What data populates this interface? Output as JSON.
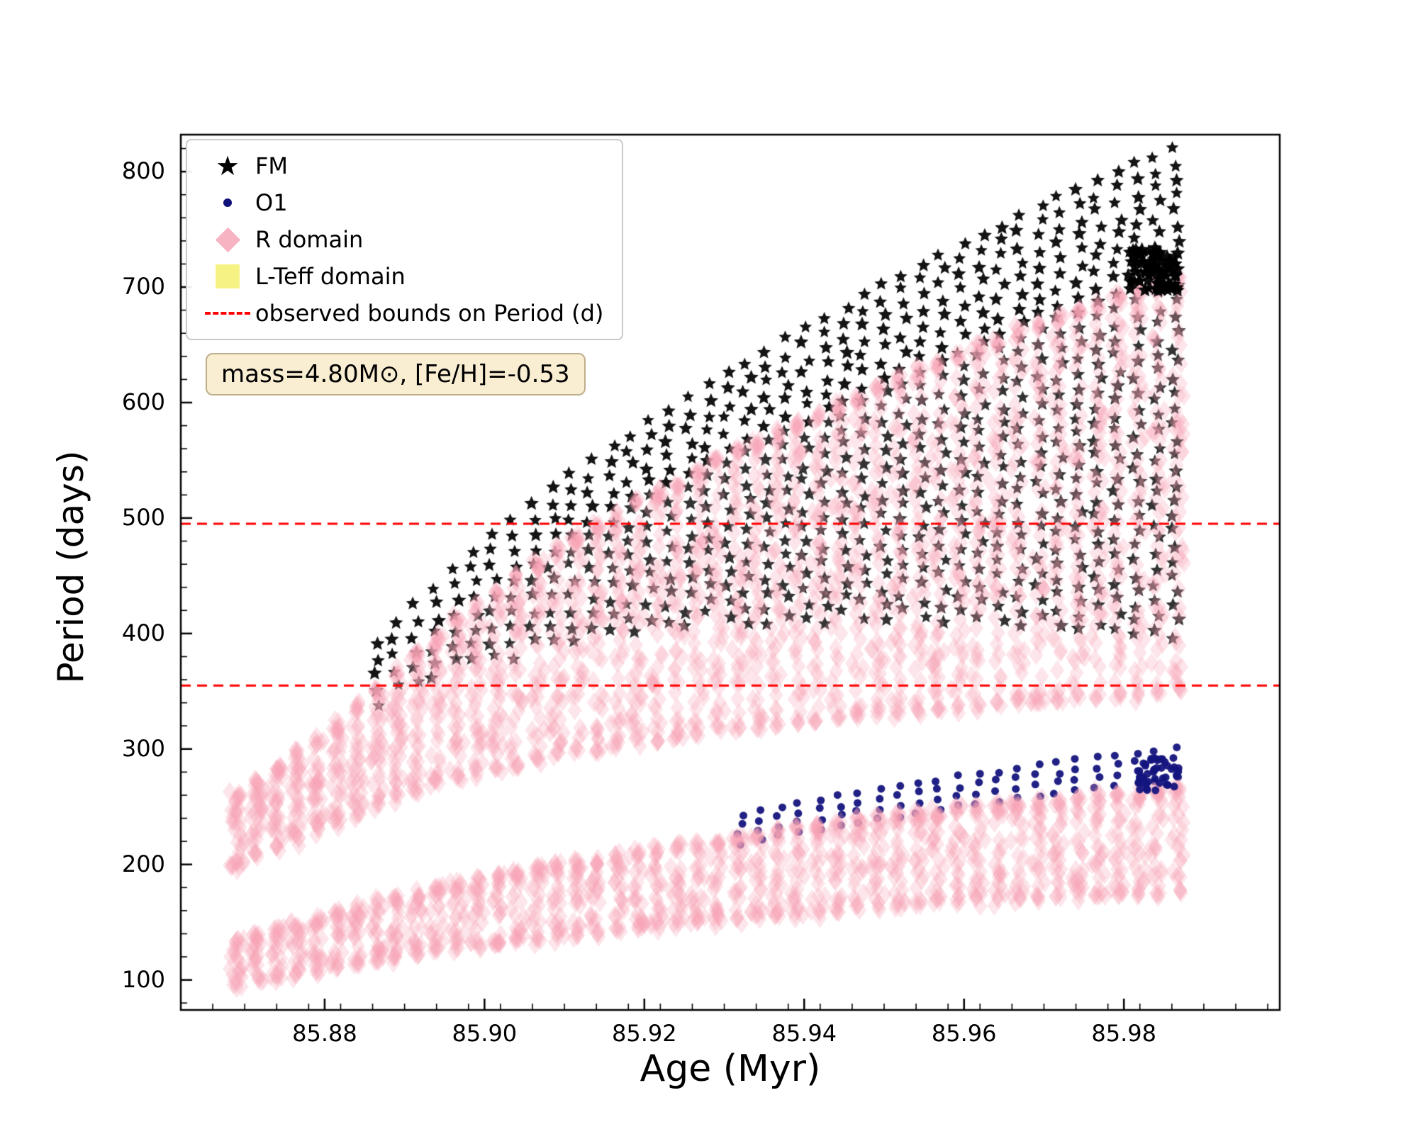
{
  "legend": {
    "position": "upper left",
    "items": [
      {
        "label": "FM",
        "marker": "star",
        "color": "#000000"
      },
      {
        "label": "O1",
        "marker": "dot",
        "color": "#10107a"
      },
      {
        "label": "R domain",
        "marker": "diamond",
        "color": "#f7b3c2"
      },
      {
        "label": "L-Teff domain",
        "marker": "square",
        "color": "#f5f16e"
      },
      {
        "label": "observed bounds on Period (d)",
        "marker": "dashed-line",
        "color": "#ff0000"
      }
    ]
  },
  "annotation": {
    "text": "mass=4.80M⊙, [Fe/H]=-0.53",
    "background": "#f9edd2",
    "border_color": "#bfae8c"
  },
  "chart_data": {
    "type": "scatter",
    "title": "",
    "xlabel": "Age (Myr)",
    "ylabel": "Period (days)",
    "xlim": [
      85.862,
      85.9995
    ],
    "ylim": [
      74,
      832
    ],
    "xticks": [
      85.88,
      85.9,
      85.92,
      85.94,
      85.96,
      85.98
    ],
    "yticks": [
      100,
      200,
      300,
      400,
      500,
      600,
      700,
      800
    ],
    "x_minor_step": 0.004,
    "y_minor_step": 20,
    "grid": false,
    "legend_position": "upper left",
    "hlines": {
      "label": "observed bounds on Period (d)",
      "values": [
        495,
        355
      ],
      "color": "#ff0000",
      "style": "dashed"
    },
    "series": [
      {
        "name": "FM",
        "marker": "star",
        "color": "#000000",
        "alpha_top": 0.92,
        "alpha_buried": 0.8,
        "age_start": 85.8865,
        "age_end": 85.9865,
        "columns": 42,
        "spacing_days": 13.2,
        "above_envelope_min": 35,
        "above_envelope_extra": 75,
        "below_envelope_min": 20,
        "below_envelope_extra": 300,
        "period_range": [
          345,
          818
        ],
        "clump": {
          "age_range": [
            85.9805,
            85.9868
          ],
          "period_range": [
            697,
            733
          ],
          "count": 85
        }
      },
      {
        "name": "O1",
        "marker": "dot",
        "color": "#14147e",
        "age_start": 85.932,
        "age_end": 85.9865,
        "columns": 23,
        "offsets_days": [
          -13,
          -4.5,
          4,
          12.5
        ],
        "center_above_envelope_min": 4,
        "center_above_envelope_extra": 16,
        "period_range": [
          230,
          292
        ],
        "clump": {
          "age_range": [
            85.9815,
            85.9868
          ],
          "period_range": [
            261,
            292
          ],
          "count": 42
        }
      },
      {
        "name": "R domain",
        "marker": "diamond",
        "color": "rgba(247,163,180,0.27)",
        "column_count": 48,
        "age_start": 85.869,
        "age_end": 85.9868,
        "bands": {
          "upper": {
            "top": [
              [
                85.869,
                263
              ],
              [
                85.88,
                316
              ],
              [
                85.89,
                378
              ],
              [
                85.9,
                433
              ],
              [
                85.91,
                481
              ],
              [
                85.92,
                521
              ],
              [
                85.93,
                556
              ],
              [
                85.94,
                588
              ],
              [
                85.95,
                619
              ],
              [
                85.96,
                648
              ],
              [
                85.97,
                674
              ],
              [
                85.98,
                697
              ],
              [
                85.987,
                710
              ]
            ],
            "bottom": [
              [
                85.869,
                196
              ],
              [
                85.88,
                231
              ],
              [
                85.89,
                259
              ],
              [
                85.9,
                277
              ],
              [
                85.91,
                292
              ],
              [
                85.92,
                304
              ],
              [
                85.93,
                314
              ],
              [
                85.94,
                322
              ],
              [
                85.95,
                329
              ],
              [
                85.96,
                335
              ],
              [
                85.97,
                340
              ],
              [
                85.98,
                344
              ],
              [
                85.987,
                347
              ]
            ]
          },
          "lower": {
            "top": [
              [
                85.869,
                136
              ],
              [
                85.88,
                158
              ],
              [
                85.89,
                176
              ],
              [
                85.9,
                191
              ],
              [
                85.91,
                203
              ],
              [
                85.92,
                215
              ],
              [
                85.93,
                225
              ],
              [
                85.94,
                235
              ],
              [
                85.95,
                244
              ],
              [
                85.96,
                252
              ],
              [
                85.97,
                259
              ],
              [
                85.98,
                265
              ],
              [
                85.987,
                268
              ]
            ],
            "bottom": [
              [
                85.869,
                94
              ],
              [
                85.88,
                108
              ],
              [
                85.89,
                119
              ],
              [
                85.9,
                129
              ],
              [
                85.91,
                137
              ],
              [
                85.92,
                144
              ],
              [
                85.93,
                150
              ],
              [
                85.94,
                156
              ],
              [
                85.95,
                161
              ],
              [
                85.96,
                166
              ],
              [
                85.97,
                170
              ],
              [
                85.98,
                173
              ],
              [
                85.987,
                175
              ]
            ]
          }
        }
      }
    ]
  }
}
